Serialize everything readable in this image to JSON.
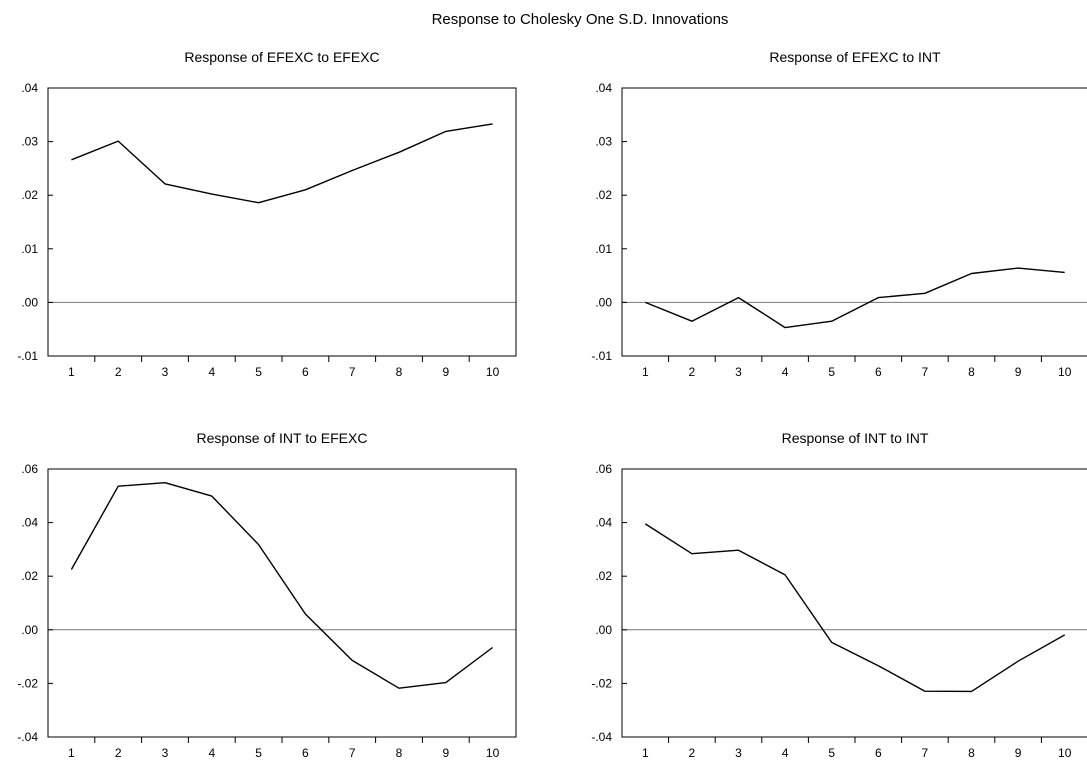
{
  "figure_title": "Response to Cholesky One S.D. Innovations",
  "chart_data": [
    {
      "type": "line",
      "title": "Response of EFEXC to EFEXC",
      "xlabel": "",
      "ylabel": "",
      "x": [
        1,
        2,
        3,
        4,
        5,
        6,
        7,
        8,
        9,
        10
      ],
      "series": [
        {
          "values": [
            0.0266,
            0.0301,
            0.0221,
            0.0202,
            0.0186,
            0.021,
            0.0246,
            0.028,
            0.0319,
            0.0333
          ]
        }
      ],
      "ylim": [
        -0.01,
        0.04
      ],
      "yticks": [
        -0.01,
        0.0,
        0.01,
        0.02,
        0.03,
        0.04
      ],
      "ytick_labels": [
        "-.01",
        ".00",
        ".01",
        ".02",
        ".03",
        ".04"
      ],
      "xlim": [
        0.5,
        10.5
      ],
      "xticks": [
        1,
        2,
        3,
        4,
        5,
        6,
        7,
        8,
        9,
        10
      ],
      "xtick_labels": [
        "1",
        "2",
        "3",
        "4",
        "5",
        "6",
        "7",
        "8",
        "9",
        "10"
      ],
      "zero_line": true,
      "grid": false,
      "legend": "none"
    },
    {
      "type": "line",
      "title": "Response of EFEXC to INT",
      "xlabel": "",
      "ylabel": "",
      "x": [
        1,
        2,
        3,
        4,
        5,
        6,
        7,
        8,
        9,
        10
      ],
      "series": [
        {
          "values": [
            0.0,
            -0.0035,
            0.0009,
            -0.0047,
            -0.0035,
            0.0009,
            0.0017,
            0.0054,
            0.0064,
            0.0056
          ]
        }
      ],
      "ylim": [
        -0.01,
        0.04
      ],
      "yticks": [
        -0.01,
        0.0,
        0.01,
        0.02,
        0.03,
        0.04
      ],
      "ytick_labels": [
        "-.01",
        ".00",
        ".01",
        ".02",
        ".03",
        ".04"
      ],
      "xlim": [
        0.5,
        10.5
      ],
      "xticks": [
        1,
        2,
        3,
        4,
        5,
        6,
        7,
        8,
        9,
        10
      ],
      "xtick_labels": [
        "1",
        "2",
        "3",
        "4",
        "5",
        "6",
        "7",
        "8",
        "9",
        "10"
      ],
      "zero_line": true,
      "grid": false,
      "legend": "none"
    },
    {
      "type": "line",
      "title": "Response of INT to EFEXC",
      "xlabel": "",
      "ylabel": "",
      "x": [
        1,
        2,
        3,
        4,
        5,
        6,
        7,
        8,
        9,
        10
      ],
      "series": [
        {
          "values": [
            0.0225,
            0.0536,
            0.0549,
            0.0499,
            0.0318,
            0.0059,
            -0.0114,
            -0.0218,
            -0.0197,
            -0.0066
          ]
        }
      ],
      "ylim": [
        -0.04,
        0.06
      ],
      "yticks": [
        -0.04,
        -0.02,
        0.0,
        0.02,
        0.04,
        0.06
      ],
      "ytick_labels": [
        "-.04",
        "-.02",
        ".00",
        ".02",
        ".04",
        ".06"
      ],
      "xlim": [
        0.5,
        10.5
      ],
      "xticks": [
        1,
        2,
        3,
        4,
        5,
        6,
        7,
        8,
        9,
        10
      ],
      "xtick_labels": [
        "1",
        "2",
        "3",
        "4",
        "5",
        "6",
        "7",
        "8",
        "9",
        "10"
      ],
      "zero_line": true,
      "grid": false,
      "legend": "none"
    },
    {
      "type": "line",
      "title": "Response of INT to INT",
      "xlabel": "",
      "ylabel": "",
      "x": [
        1,
        2,
        3,
        4,
        5,
        6,
        7,
        8,
        9,
        10
      ],
      "series": [
        {
          "values": [
            0.0395,
            0.0284,
            0.0297,
            0.0205,
            -0.0047,
            -0.0134,
            -0.0229,
            -0.023,
            -0.0117,
            -0.0019
          ]
        }
      ],
      "ylim": [
        -0.04,
        0.06
      ],
      "yticks": [
        -0.04,
        -0.02,
        0.0,
        0.02,
        0.04,
        0.06
      ],
      "ytick_labels": [
        "-.04",
        "-.02",
        ".00",
        ".02",
        ".04",
        ".06"
      ],
      "xlim": [
        0.5,
        10.5
      ],
      "xticks": [
        1,
        2,
        3,
        4,
        5,
        6,
        7,
        8,
        9,
        10
      ],
      "xtick_labels": [
        "1",
        "2",
        "3",
        "4",
        "5",
        "6",
        "7",
        "8",
        "9",
        "10"
      ],
      "zero_line": true,
      "grid": false,
      "legend": "none"
    }
  ]
}
